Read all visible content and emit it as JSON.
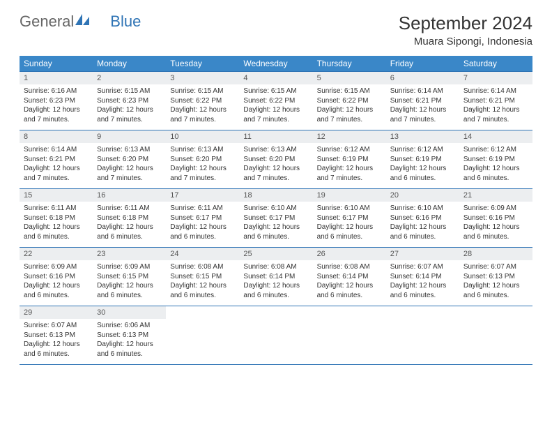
{
  "brand": {
    "part1": "General",
    "part2": "Blue"
  },
  "title": "September 2024",
  "location": "Muara Sipongi, Indonesia",
  "colors": {
    "header_bg": "#3a87c8",
    "daynum_bg": "#eceef0",
    "rule": "#2f74b5",
    "brand_blue": "#2f74b5"
  },
  "dow": [
    "Sunday",
    "Monday",
    "Tuesday",
    "Wednesday",
    "Thursday",
    "Friday",
    "Saturday"
  ],
  "weeks": [
    [
      {
        "n": "1",
        "sr": "6:16 AM",
        "ss": "6:23 PM",
        "dl": "12 hours and 7 minutes."
      },
      {
        "n": "2",
        "sr": "6:15 AM",
        "ss": "6:23 PM",
        "dl": "12 hours and 7 minutes."
      },
      {
        "n": "3",
        "sr": "6:15 AM",
        "ss": "6:22 PM",
        "dl": "12 hours and 7 minutes."
      },
      {
        "n": "4",
        "sr": "6:15 AM",
        "ss": "6:22 PM",
        "dl": "12 hours and 7 minutes."
      },
      {
        "n": "5",
        "sr": "6:15 AM",
        "ss": "6:22 PM",
        "dl": "12 hours and 7 minutes."
      },
      {
        "n": "6",
        "sr": "6:14 AM",
        "ss": "6:21 PM",
        "dl": "12 hours and 7 minutes."
      },
      {
        "n": "7",
        "sr": "6:14 AM",
        "ss": "6:21 PM",
        "dl": "12 hours and 7 minutes."
      }
    ],
    [
      {
        "n": "8",
        "sr": "6:14 AM",
        "ss": "6:21 PM",
        "dl": "12 hours and 7 minutes."
      },
      {
        "n": "9",
        "sr": "6:13 AM",
        "ss": "6:20 PM",
        "dl": "12 hours and 7 minutes."
      },
      {
        "n": "10",
        "sr": "6:13 AM",
        "ss": "6:20 PM",
        "dl": "12 hours and 7 minutes."
      },
      {
        "n": "11",
        "sr": "6:13 AM",
        "ss": "6:20 PM",
        "dl": "12 hours and 7 minutes."
      },
      {
        "n": "12",
        "sr": "6:12 AM",
        "ss": "6:19 PM",
        "dl": "12 hours and 7 minutes."
      },
      {
        "n": "13",
        "sr": "6:12 AM",
        "ss": "6:19 PM",
        "dl": "12 hours and 6 minutes."
      },
      {
        "n": "14",
        "sr": "6:12 AM",
        "ss": "6:19 PM",
        "dl": "12 hours and 6 minutes."
      }
    ],
    [
      {
        "n": "15",
        "sr": "6:11 AM",
        "ss": "6:18 PM",
        "dl": "12 hours and 6 minutes."
      },
      {
        "n": "16",
        "sr": "6:11 AM",
        "ss": "6:18 PM",
        "dl": "12 hours and 6 minutes."
      },
      {
        "n": "17",
        "sr": "6:11 AM",
        "ss": "6:17 PM",
        "dl": "12 hours and 6 minutes."
      },
      {
        "n": "18",
        "sr": "6:10 AM",
        "ss": "6:17 PM",
        "dl": "12 hours and 6 minutes."
      },
      {
        "n": "19",
        "sr": "6:10 AM",
        "ss": "6:17 PM",
        "dl": "12 hours and 6 minutes."
      },
      {
        "n": "20",
        "sr": "6:10 AM",
        "ss": "6:16 PM",
        "dl": "12 hours and 6 minutes."
      },
      {
        "n": "21",
        "sr": "6:09 AM",
        "ss": "6:16 PM",
        "dl": "12 hours and 6 minutes."
      }
    ],
    [
      {
        "n": "22",
        "sr": "6:09 AM",
        "ss": "6:16 PM",
        "dl": "12 hours and 6 minutes."
      },
      {
        "n": "23",
        "sr": "6:09 AM",
        "ss": "6:15 PM",
        "dl": "12 hours and 6 minutes."
      },
      {
        "n": "24",
        "sr": "6:08 AM",
        "ss": "6:15 PM",
        "dl": "12 hours and 6 minutes."
      },
      {
        "n": "25",
        "sr": "6:08 AM",
        "ss": "6:14 PM",
        "dl": "12 hours and 6 minutes."
      },
      {
        "n": "26",
        "sr": "6:08 AM",
        "ss": "6:14 PM",
        "dl": "12 hours and 6 minutes."
      },
      {
        "n": "27",
        "sr": "6:07 AM",
        "ss": "6:14 PM",
        "dl": "12 hours and 6 minutes."
      },
      {
        "n": "28",
        "sr": "6:07 AM",
        "ss": "6:13 PM",
        "dl": "12 hours and 6 minutes."
      }
    ],
    [
      {
        "n": "29",
        "sr": "6:07 AM",
        "ss": "6:13 PM",
        "dl": "12 hours and 6 minutes."
      },
      {
        "n": "30",
        "sr": "6:06 AM",
        "ss": "6:13 PM",
        "dl": "12 hours and 6 minutes."
      },
      null,
      null,
      null,
      null,
      null
    ]
  ],
  "labels": {
    "sunrise": "Sunrise: ",
    "sunset": "Sunset: ",
    "daylight": "Daylight: "
  }
}
